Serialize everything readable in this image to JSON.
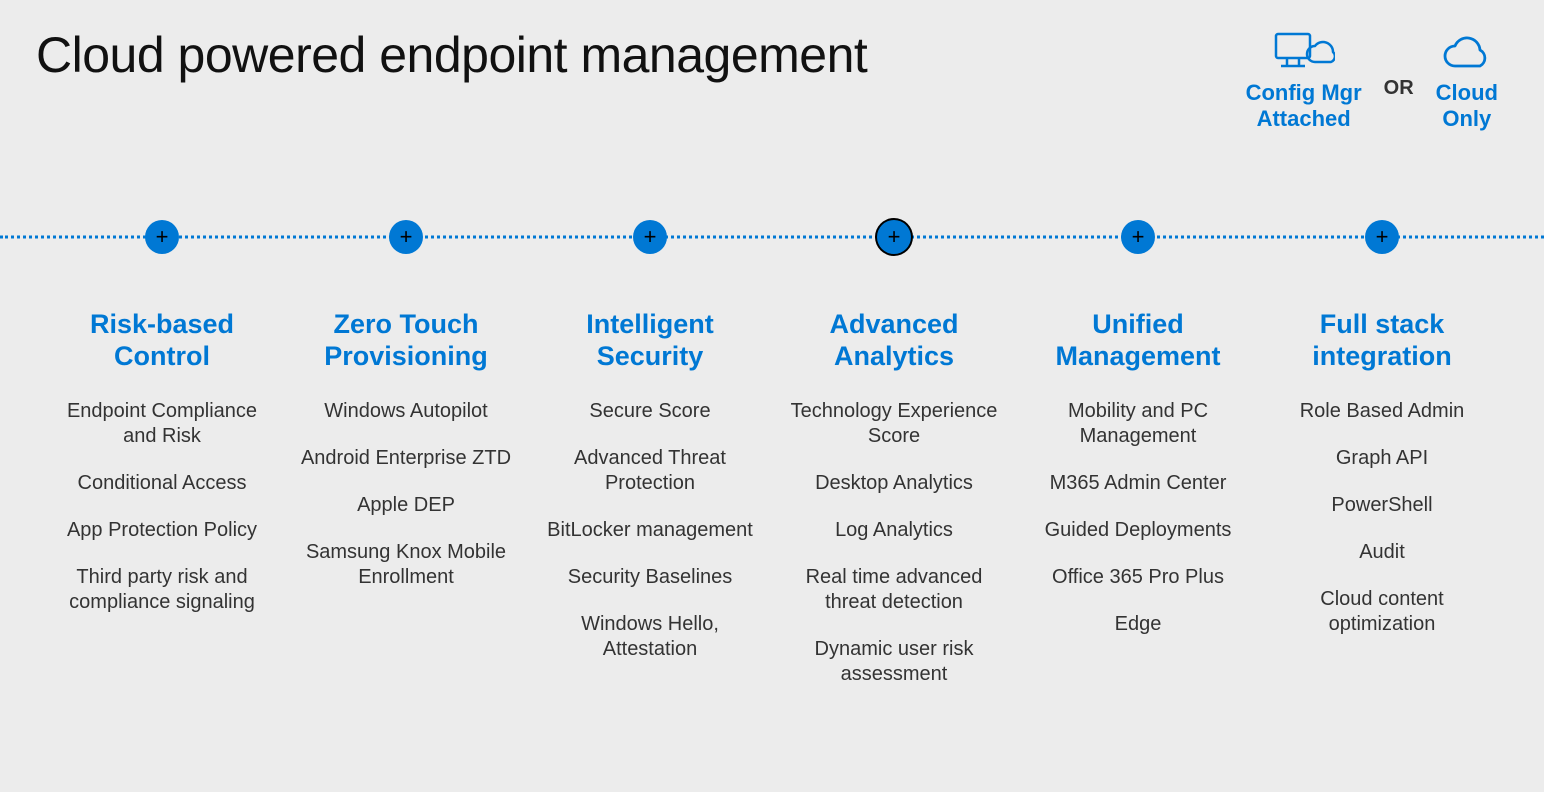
{
  "title": "Cloud powered endpoint management",
  "accent_color": "#0078d4",
  "background_color": "#ececec",
  "text_color": "#333333",
  "title_color": "#111111",
  "title_fontsize": 50,
  "column_title_fontsize": 27,
  "item_fontsize": 20,
  "badges": {
    "left": {
      "label_line1": "Config Mgr",
      "label_line2": "Attached",
      "icon": "monitor-cloud-icon"
    },
    "or": "OR",
    "right": {
      "label_line1": "Cloud",
      "label_line2": "Only",
      "icon": "cloud-icon"
    }
  },
  "timeline": {
    "node_count": 6,
    "node_color": "#0078d4",
    "plus_color": "#000000",
    "dot_color": "#0078d4",
    "highlighted_index": 3
  },
  "columns": [
    {
      "title_line1": "Risk-based",
      "title_line2": "Control",
      "items": [
        "Endpoint Compliance and Risk",
        "Conditional Access",
        "App Protection Policy",
        "Third party risk and compliance signaling"
      ]
    },
    {
      "title_line1": "Zero Touch",
      "title_line2": "Provisioning",
      "items": [
        "Windows Autopilot",
        "Android Enterprise ZTD",
        "Apple DEP",
        "Samsung Knox Mobile Enrollment"
      ]
    },
    {
      "title_line1": "Intelligent",
      "title_line2": "Security",
      "items": [
        "Secure Score",
        "Advanced Threat Protection",
        "BitLocker management",
        "Security Baselines",
        "Windows Hello, Attestation"
      ]
    },
    {
      "title_line1": "Advanced",
      "title_line2": "Analytics",
      "items": [
        "Technology Experience Score",
        "Desktop Analytics",
        "Log Analytics",
        "Real time advanced threat detection",
        "Dynamic user risk assessment"
      ]
    },
    {
      "title_line1": "Unified",
      "title_line2": "Management",
      "items": [
        "Mobility and PC Management",
        "M365 Admin Center",
        "Guided Deployments",
        "Office 365 Pro Plus",
        "Edge"
      ]
    },
    {
      "title_line1": "Full stack",
      "title_line2": "integration",
      "items": [
        "Role Based Admin",
        "Graph API",
        "PowerShell",
        "Audit",
        "Cloud content optimization"
      ]
    }
  ]
}
